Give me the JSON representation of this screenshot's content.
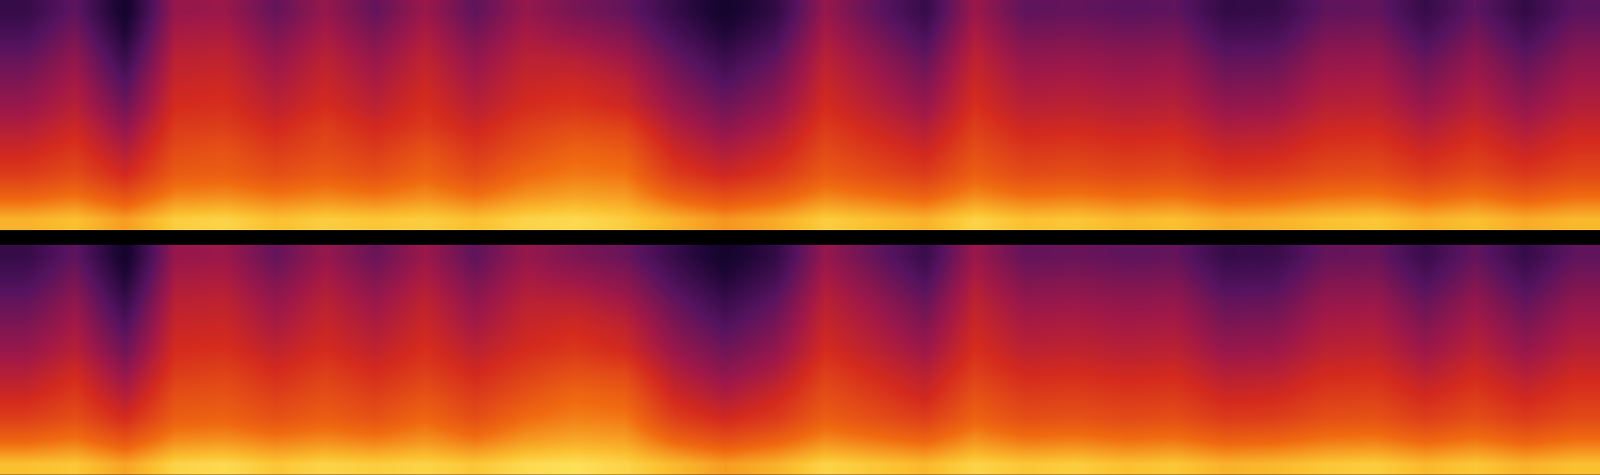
{
  "chart_data": [
    {
      "type": "heatmap",
      "zlim": [
        0,
        100
      ],
      "tick_labels": false,
      "z": [
        [
          88,
          90,
          85,
          92,
          93,
          90,
          92,
          91,
          92,
          90,
          93,
          94,
          92,
          88,
          84,
          87,
          92,
          90,
          88,
          93,
          90,
          91,
          89,
          90,
          87,
          88,
          90,
          91,
          88,
          90,
          87,
          89
        ],
        [
          76,
          79,
          72,
          82,
          83,
          80,
          82,
          80,
          83,
          79,
          84,
          86,
          85,
          76,
          71,
          75,
          82,
          79,
          76,
          83,
          79,
          80,
          78,
          79,
          75,
          76,
          79,
          80,
          76,
          79,
          75,
          78
        ],
        [
          66,
          70,
          61,
          74,
          75,
          71,
          74,
          71,
          76,
          70,
          77,
          80,
          79,
          66,
          60,
          65,
          74,
          70,
          66,
          75,
          70,
          71,
          69,
          70,
          65,
          66,
          70,
          71,
          66,
          70,
          65,
          69
        ],
        [
          60,
          65,
          54,
          70,
          72,
          66,
          70,
          66,
          72,
          65,
          71,
          76,
          74,
          60,
          53,
          59,
          70,
          65,
          60,
          71,
          65,
          66,
          64,
          65,
          59,
          60,
          65,
          66,
          60,
          65,
          59,
          64
        ],
        [
          54,
          60,
          47,
          66,
          67,
          61,
          67,
          61,
          66,
          60,
          67,
          70,
          68,
          54,
          46,
          53,
          66,
          60,
          54,
          67,
          60,
          61,
          59,
          60,
          53,
          54,
          60,
          61,
          54,
          60,
          53,
          59
        ],
        [
          48,
          55,
          40,
          62,
          63,
          56,
          62,
          56,
          63,
          55,
          62,
          64,
          60,
          48,
          40,
          47,
          62,
          55,
          48,
          63,
          55,
          56,
          54,
          55,
          47,
          48,
          55,
          56,
          48,
          55,
          47,
          54
        ],
        [
          43,
          51,
          34,
          59,
          60,
          52,
          59,
          52,
          60,
          51,
          59,
          60,
          56,
          43,
          34,
          42,
          59,
          51,
          43,
          60,
          51,
          52,
          50,
          51,
          42,
          43,
          51,
          52,
          43,
          51,
          42,
          50
        ],
        [
          38,
          47,
          28,
          56,
          57,
          48,
          56,
          48,
          57,
          47,
          56,
          55,
          50,
          38,
          28,
          37,
          56,
          47,
          38,
          57,
          47,
          48,
          46,
          47,
          37,
          38,
          47,
          48,
          38,
          47,
          37,
          46
        ],
        [
          32,
          42,
          22,
          52,
          53,
          43,
          52,
          43,
          53,
          42,
          52,
          48,
          44,
          32,
          22,
          31,
          52,
          42,
          32,
          53,
          42,
          43,
          41,
          42,
          31,
          32,
          42,
          43,
          32,
          42,
          31,
          41
        ],
        [
          27,
          37,
          17,
          48,
          49,
          38,
          48,
          38,
          49,
          37,
          48,
          42,
          38,
          27,
          17,
          26,
          48,
          37,
          27,
          49,
          37,
          38,
          36,
          37,
          26,
          27,
          37,
          38,
          27,
          37,
          26,
          36
        ]
      ]
    },
    {
      "type": "heatmap",
      "zlim": [
        0,
        100
      ],
      "tick_labels": false,
      "z": [
        [
          90,
          91,
          86,
          93,
          94,
          91,
          93,
          92,
          93,
          91,
          94,
          95,
          93,
          89,
          85,
          88,
          93,
          91,
          89,
          93,
          91,
          92,
          90,
          91,
          88,
          89,
          91,
          92,
          89,
          91,
          88,
          90
        ],
        [
          77,
          80,
          73,
          83,
          84,
          81,
          83,
          81,
          84,
          80,
          85,
          87,
          86,
          77,
          72,
          76,
          83,
          80,
          77,
          84,
          80,
          81,
          79,
          80,
          76,
          77,
          80,
          81,
          77,
          80,
          76,
          79
        ],
        [
          67,
          71,
          62,
          75,
          76,
          72,
          75,
          72,
          77,
          71,
          78,
          81,
          80,
          67,
          61,
          66,
          75,
          71,
          67,
          76,
          71,
          72,
          70,
          71,
          66,
          67,
          71,
          72,
          67,
          71,
          66,
          70
        ],
        [
          60,
          66,
          54,
          71,
          72,
          67,
          71,
          67,
          72,
          66,
          72,
          77,
          75,
          60,
          53,
          60,
          71,
          66,
          60,
          72,
          66,
          67,
          65,
          66,
          60,
          61,
          66,
          67,
          61,
          66,
          60,
          65
        ],
        [
          54,
          61,
          47,
          66,
          68,
          62,
          67,
          62,
          67,
          61,
          67,
          71,
          69,
          54,
          46,
          53,
          67,
          61,
          55,
          67,
          61,
          62,
          60,
          61,
          54,
          55,
          61,
          62,
          55,
          61,
          54,
          60
        ],
        [
          48,
          55,
          40,
          62,
          63,
          57,
          62,
          57,
          63,
          56,
          62,
          65,
          61,
          48,
          40,
          47,
          62,
          56,
          49,
          63,
          56,
          57,
          55,
          56,
          48,
          49,
          56,
          57,
          49,
          56,
          48,
          55
        ],
        [
          43,
          51,
          34,
          59,
          60,
          52,
          59,
          53,
          60,
          51,
          59,
          61,
          57,
          43,
          34,
          42,
          59,
          52,
          44,
          60,
          52,
          53,
          51,
          52,
          43,
          44,
          52,
          53,
          44,
          52,
          43,
          51
        ],
        [
          38,
          47,
          28,
          56,
          57,
          48,
          56,
          49,
          57,
          47,
          56,
          56,
          51,
          38,
          28,
          37,
          56,
          48,
          39,
          57,
          48,
          49,
          47,
          48,
          38,
          39,
          48,
          49,
          39,
          48,
          38,
          47
        ],
        [
          32,
          42,
          22,
          52,
          53,
          43,
          52,
          44,
          53,
          42,
          52,
          49,
          45,
          32,
          22,
          31,
          52,
          43,
          33,
          53,
          43,
          44,
          42,
          43,
          32,
          33,
          43,
          44,
          33,
          43,
          32,
          42
        ],
        [
          27,
          37,
          17,
          48,
          49,
          38,
          48,
          39,
          49,
          37,
          48,
          43,
          39,
          27,
          17,
          26,
          48,
          38,
          28,
          49,
          38,
          39,
          37,
          38,
          27,
          28,
          38,
          39,
          28,
          38,
          27,
          37
        ]
      ]
    }
  ]
}
